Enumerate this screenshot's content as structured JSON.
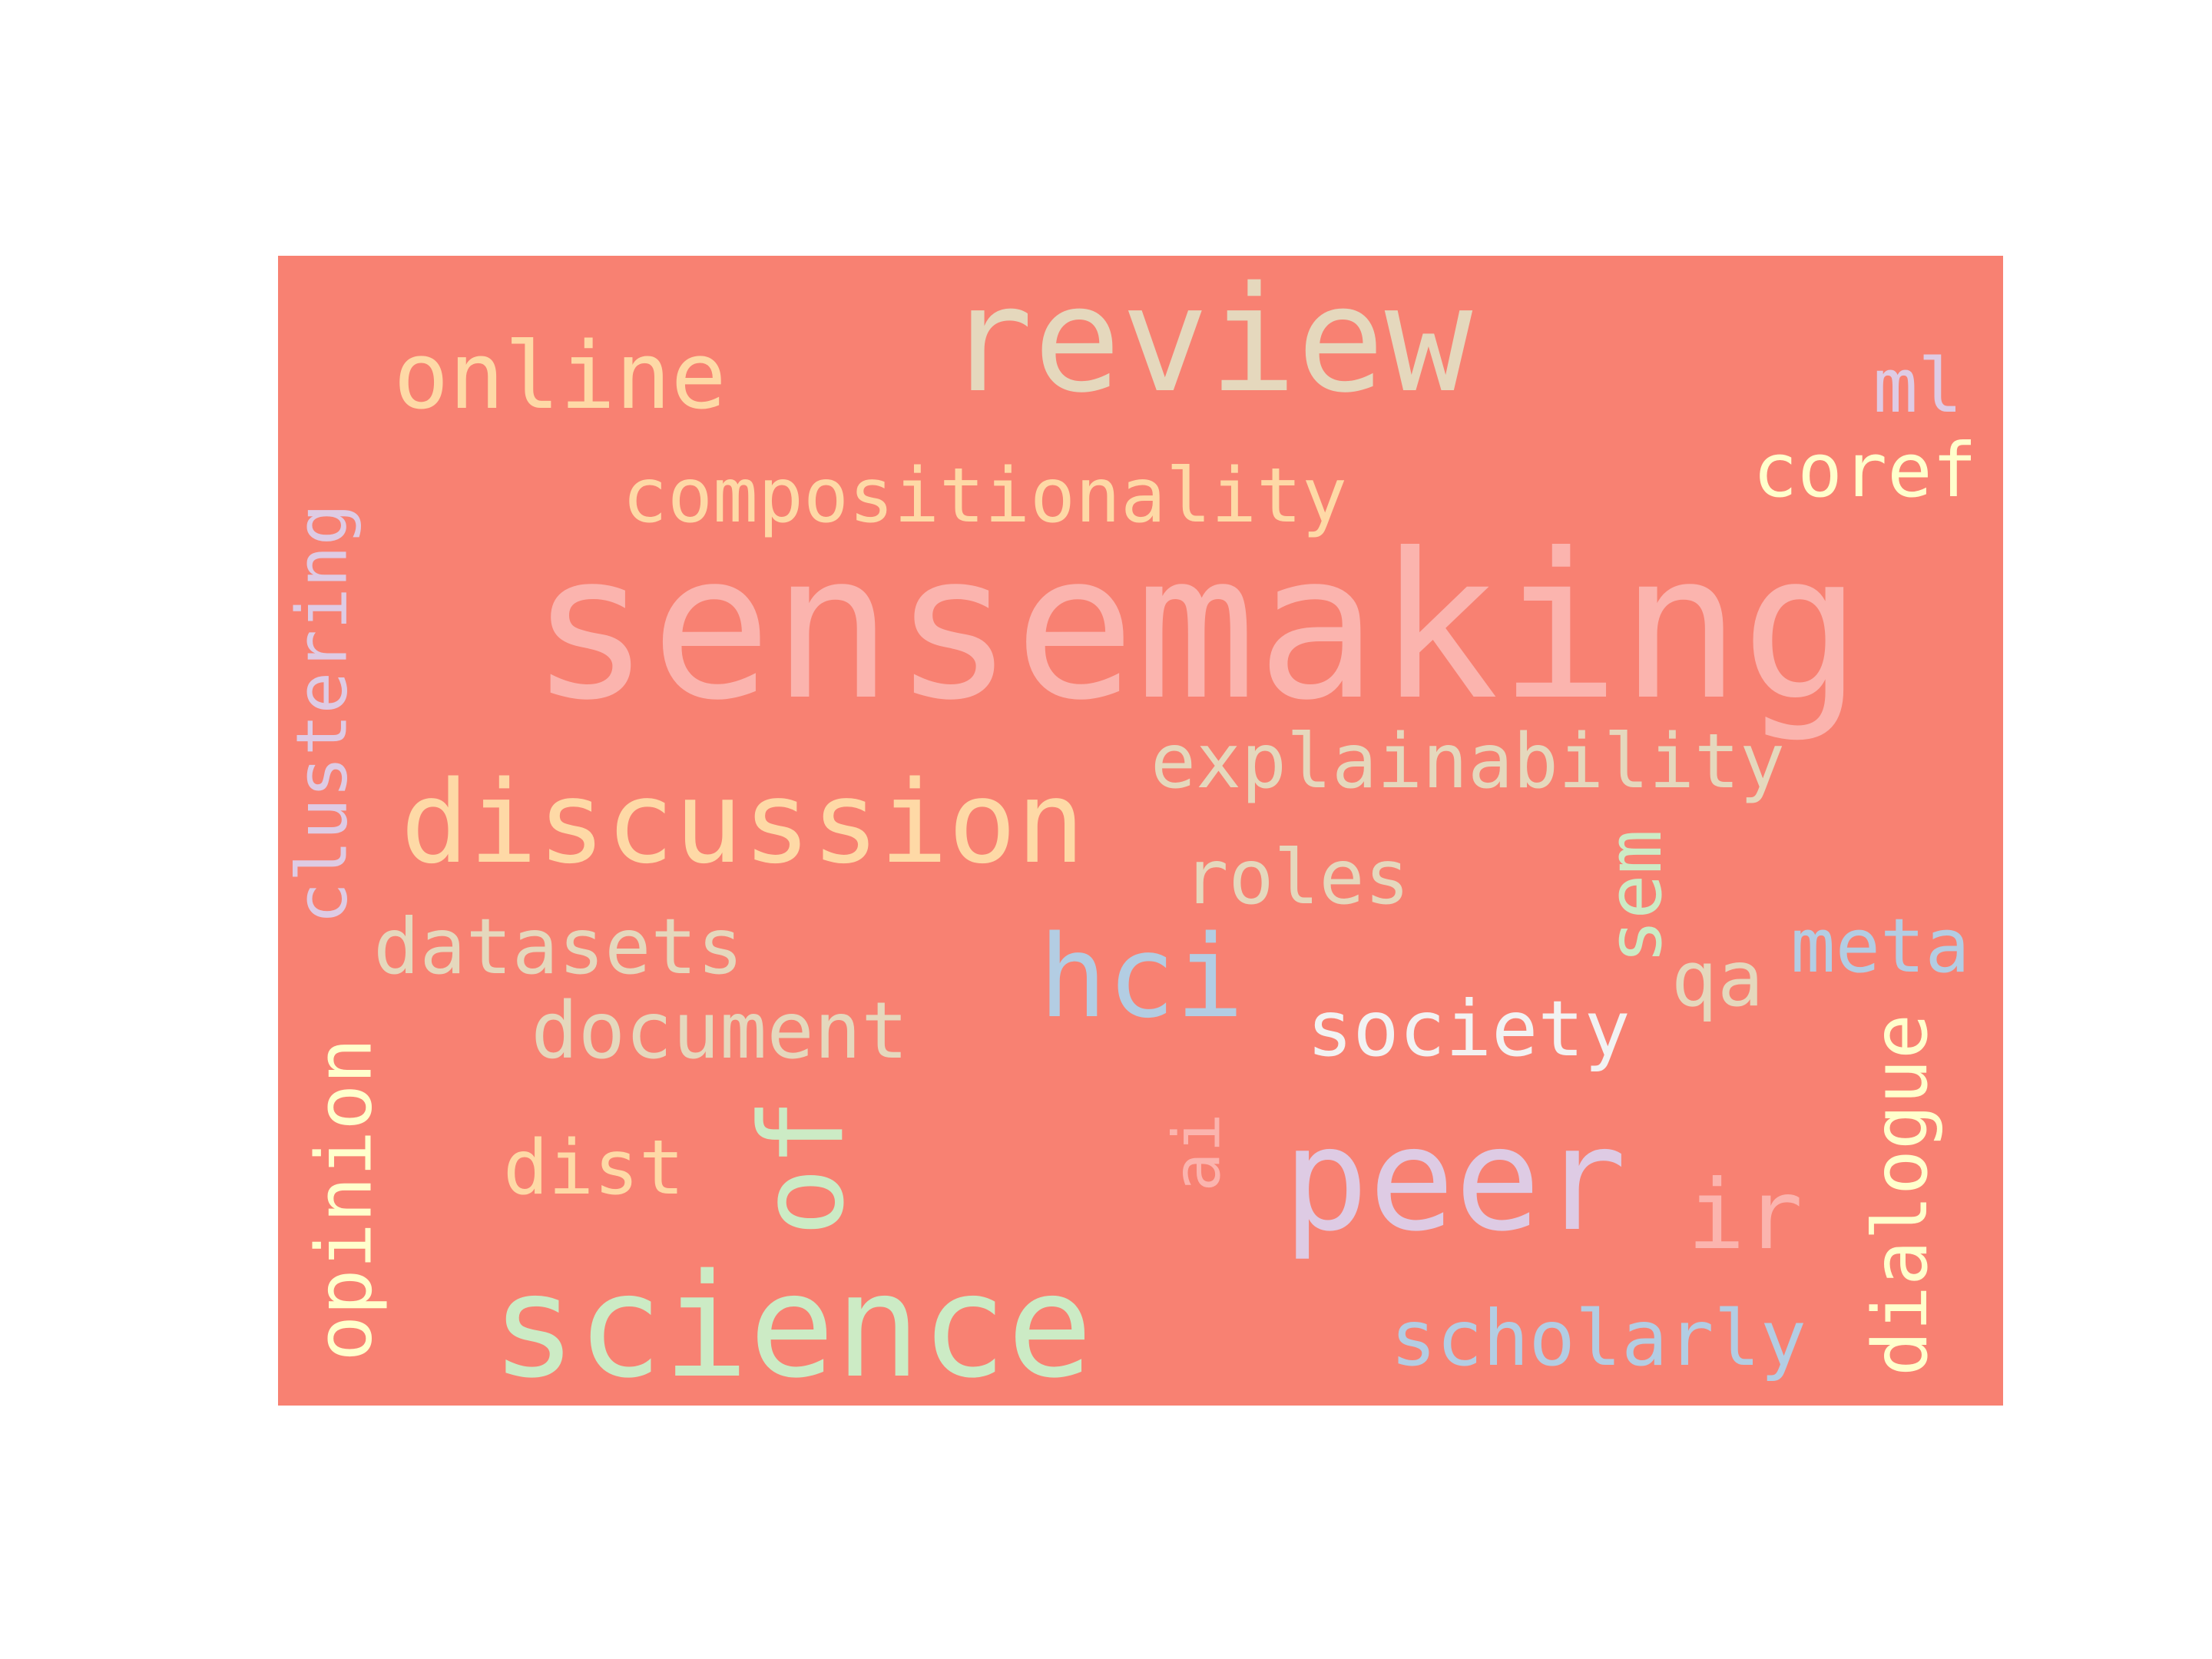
{
  "panel": {
    "background": "#f88172"
  },
  "words": [
    {
      "id": "sensemaking",
      "text": "sensemaking",
      "color": "#fbb4ae",
      "rotated": false
    },
    {
      "id": "review",
      "text": "review",
      "color": "#e5d8bd",
      "rotated": false
    },
    {
      "id": "peer",
      "text": "peer",
      "color": "#decbe4",
      "rotated": false
    },
    {
      "id": "science",
      "text": "science",
      "color": "#ccebc5",
      "rotated": false
    },
    {
      "id": "discussion",
      "text": "discussion",
      "color": "#fed9a6",
      "rotated": false
    },
    {
      "id": "online",
      "text": "online",
      "color": "#fed9a6",
      "rotated": false
    },
    {
      "id": "compositionality",
      "text": "compositionality",
      "color": "#fed9a6",
      "rotated": false
    },
    {
      "id": "explainability",
      "text": "explainability",
      "color": "#e5d8bd",
      "rotated": false
    },
    {
      "id": "clustering",
      "text": "clustering",
      "color": "#decbe4",
      "rotated": true
    },
    {
      "id": "hci",
      "text": "hci",
      "color": "#b3cde3",
      "rotated": false
    },
    {
      "id": "of",
      "text": "of",
      "color": "#ccebc5",
      "rotated": true
    },
    {
      "id": "datasets",
      "text": "datasets",
      "color": "#e5d8bd",
      "rotated": false
    },
    {
      "id": "document",
      "text": "document",
      "color": "#e5d8bd",
      "rotated": false
    },
    {
      "id": "roles",
      "text": "roles",
      "color": "#e5d8bd",
      "rotated": false
    },
    {
      "id": "society",
      "text": "society",
      "color": "#f2f2f2",
      "rotated": false
    },
    {
      "id": "opinion",
      "text": "opinion",
      "color": "#ffffcc",
      "rotated": true
    },
    {
      "id": "dialogue",
      "text": "dialogue",
      "color": "#ffffcc",
      "rotated": true
    },
    {
      "id": "scholarly",
      "text": "scholarly",
      "color": "#b3cde3",
      "rotated": false
    },
    {
      "id": "coref",
      "text": "coref",
      "color": "#ffffcc",
      "rotated": false
    },
    {
      "id": "meta",
      "text": "meta",
      "color": "#b3cde3",
      "rotated": false
    },
    {
      "id": "ml",
      "text": "ml",
      "color": "#decbe4",
      "rotated": false
    },
    {
      "id": "dist",
      "text": "dist",
      "color": "#fed9a6",
      "rotated": false
    },
    {
      "id": "ir",
      "text": "ir",
      "color": "#fbb4ae",
      "rotated": false
    },
    {
      "id": "qa",
      "text": "qa",
      "color": "#e5d8bd",
      "rotated": false
    },
    {
      "id": "sem",
      "text": "sem",
      "color": "#ccebc5",
      "rotated": true
    },
    {
      "id": "ai",
      "text": "ai",
      "color": "#fbb4ae",
      "rotated": true
    }
  ]
}
